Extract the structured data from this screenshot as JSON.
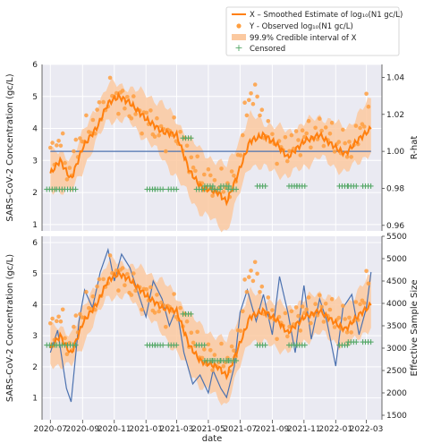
{
  "chart_data": [
    {
      "type": "line",
      "panel": "top",
      "ylabel": "SARS-CoV-2 Concentration (gc/L)",
      "y2label": "R-hat",
      "ylim": [
        0.8,
        6.0
      ],
      "y_ticks": [
        "1",
        "2",
        "3",
        "4",
        "5",
        "6"
      ],
      "y2lim": [
        0.957,
        1.047
      ],
      "y2_ticks": [
        "0.96",
        "0.98",
        "1.00",
        "1.02",
        "1.04"
      ],
      "grid": true,
      "legend": {
        "position": "top-right",
        "entries": [
          "X – Smoothed Estimate of log₁₀(N1 gc/L)",
          "Y - Observed log₁₀(N1 gc/L)",
          "99.9% Credible interval of X",
          "Censored"
        ]
      },
      "series": [
        {
          "name": "X – Smoothed Estimate of log10(N1 gc/L)",
          "color": "#ff7f0e",
          "x": [
            "2020-07-01",
            "2020-07-20",
            "2020-08-10",
            "2020-09-01",
            "2020-10-01",
            "2020-10-20",
            "2020-11-10",
            "2020-12-01",
            "2021-01-01",
            "2021-02-01",
            "2021-03-01",
            "2021-03-25",
            "2021-04-15",
            "2021-05-01",
            "2021-05-20",
            "2021-06-05",
            "2021-06-25",
            "2021-07-20",
            "2021-08-15",
            "2021-09-10",
            "2021-10-01",
            "2021-11-01",
            "2021-12-01",
            "2022-01-01",
            "2022-01-20",
            "2022-02-10",
            "2022-03-10"
          ],
          "values": [
            2.6,
            3.0,
            2.4,
            3.4,
            4.1,
            4.8,
            5.0,
            4.8,
            4.3,
            3.9,
            3.8,
            2.7,
            2.2,
            2.1,
            2.0,
            1.7,
            2.5,
            3.6,
            3.8,
            3.5,
            3.1,
            3.6,
            3.8,
            3.4,
            3.2,
            3.6,
            4.0
          ]
        },
        {
          "name": "Credible interval upper",
          "x": [
            "2020-07-01",
            "2020-08-10",
            "2020-10-20",
            "2020-12-01",
            "2021-02-01",
            "2021-04-15",
            "2021-06-05",
            "2021-07-20",
            "2021-10-01",
            "2021-12-01",
            "2022-01-20",
            "2022-03-10"
          ],
          "values": [
            3.3,
            3.1,
            5.4,
            5.3,
            4.8,
            3.3,
            2.8,
            4.4,
            3.9,
            4.4,
            4.0,
            4.9
          ]
        },
        {
          "name": "Credible interval lower",
          "x": [
            "2020-07-01",
            "2020-08-10",
            "2020-10-20",
            "2020-12-01",
            "2021-02-01",
            "2021-04-15",
            "2021-06-05",
            "2021-07-20",
            "2021-10-01",
            "2021-12-01",
            "2022-01-20",
            "2022-03-10"
          ],
          "values": [
            2.1,
            2.0,
            4.3,
            4.2,
            3.1,
            1.4,
            0.8,
            2.9,
            2.5,
            3.1,
            2.6,
            3.3
          ]
        },
        {
          "name": "R-hat",
          "axis": "right",
          "color": "#4c72b0",
          "x": [
            "2020-07-01",
            "2022-03-10"
          ],
          "values": [
            1.0,
            1.0
          ]
        }
      ],
      "observed_points": {
        "x": [
          "2020-07-05",
          "2020-07-20",
          "2020-08-05",
          "2020-08-25",
          "2020-09-15",
          "2020-10-05",
          "2020-10-25",
          "2020-11-15",
          "2020-12-05",
          "2021-01-10",
          "2021-02-01",
          "2021-03-01",
          "2021-04-10",
          "2021-05-05",
          "2021-05-25",
          "2021-06-20",
          "2021-07-10",
          "2021-07-25",
          "2021-08-20",
          "2021-09-15",
          "2021-10-10",
          "2021-11-05",
          "2021-12-10",
          "2022-01-10",
          "2022-02-05",
          "2022-03-01"
        ],
        "values": [
          3.2,
          3.7,
          2.5,
          3.6,
          4.0,
          4.5,
          5.1,
          4.9,
          4.6,
          4.2,
          3.8,
          3.9,
          2.6,
          2.3,
          2.2,
          2.3,
          4.3,
          5.3,
          3.9,
          3.3,
          3.5,
          3.8,
          3.9,
          3.5,
          3.4,
          4.6
        ]
      },
      "censored_points": {
        "x": [
          "2020-07-01",
          "2020-07-20",
          "2020-08-10",
          "2021-01-10",
          "2021-01-25",
          "2021-02-20",
          "2021-03-20",
          "2021-04-15",
          "2021-05-01",
          "2021-05-15",
          "2021-06-01",
          "2021-06-15",
          "2021-08-10",
          "2021-10-10",
          "2021-10-25",
          "2022-01-15",
          "2022-02-01",
          "2022-03-01"
        ],
        "values": [
          2.1,
          2.1,
          2.1,
          2.1,
          2.1,
          2.1,
          3.7,
          2.1,
          2.2,
          2.1,
          2.2,
          2.1,
          2.2,
          2.2,
          2.2,
          2.2,
          2.2,
          2.2
        ]
      }
    },
    {
      "type": "line",
      "panel": "bottom",
      "xlabel": "date",
      "ylabel": "SARS-CoV-2 Concentration (gc/L)",
      "y2label": "Effective Sample Size",
      "ylim": [
        0.3,
        6.2
      ],
      "y_ticks": [
        "1",
        "2",
        "3",
        "4",
        "5",
        "6"
      ],
      "y2lim": [
        1400,
        5500
      ],
      "y2_ticks": [
        "1500",
        "2000",
        "2500",
        "3000",
        "3500",
        "4000",
        "4500",
        "5000",
        "5500"
      ],
      "categories": [
        "2020-07",
        "2020-09",
        "2020-11",
        "2021-01",
        "2021-03",
        "2021-05",
        "2021-07",
        "2021-09",
        "2021-11",
        "2022-01",
        "2022-03"
      ],
      "grid": true,
      "series": [
        {
          "name": "X – Smoothed Estimate of log10(N1 gc/L)",
          "color": "#ff7f0e",
          "x": [
            "2020-07-01",
            "2020-07-20",
            "2020-08-10",
            "2020-09-01",
            "2020-10-01",
            "2020-10-20",
            "2020-11-10",
            "2020-12-01",
            "2021-01-01",
            "2021-02-01",
            "2021-03-01",
            "2021-03-25",
            "2021-04-15",
            "2021-05-01",
            "2021-05-20",
            "2021-06-05",
            "2021-06-25",
            "2021-07-20",
            "2021-08-15",
            "2021-09-10",
            "2021-10-01",
            "2021-11-01",
            "2021-12-01",
            "2022-01-01",
            "2022-01-20",
            "2022-02-10",
            "2022-03-10"
          ],
          "values": [
            2.6,
            3.0,
            2.4,
            3.4,
            4.1,
            4.8,
            5.0,
            4.8,
            4.3,
            3.9,
            3.8,
            2.7,
            2.2,
            2.1,
            2.0,
            1.7,
            2.5,
            3.6,
            3.8,
            3.5,
            3.1,
            3.6,
            3.8,
            3.4,
            3.2,
            3.6,
            4.0
          ]
        },
        {
          "name": "Credible interval upper",
          "x": [
            "2020-07-01",
            "2020-08-10",
            "2020-10-20",
            "2020-12-01",
            "2021-02-01",
            "2021-04-15",
            "2021-06-05",
            "2021-07-20",
            "2021-10-01",
            "2021-12-01",
            "2022-01-20",
            "2022-03-10"
          ],
          "values": [
            3.3,
            3.1,
            5.4,
            5.3,
            4.8,
            3.3,
            2.8,
            4.4,
            3.9,
            4.4,
            4.0,
            4.9
          ]
        },
        {
          "name": "Credible interval lower",
          "x": [
            "2020-07-01",
            "2020-08-10",
            "2020-10-20",
            "2020-12-01",
            "2021-02-01",
            "2021-04-15",
            "2021-06-05",
            "2021-07-20",
            "2021-10-01",
            "2021-12-01",
            "2022-01-20",
            "2022-03-10"
          ],
          "values": [
            2.1,
            2.0,
            4.3,
            4.2,
            3.1,
            1.4,
            0.8,
            2.9,
            2.5,
            3.1,
            2.6,
            3.3
          ]
        },
        {
          "name": "Effective Sample Size",
          "axis": "right",
          "color": "#4c72b0",
          "x": [
            "2020-07-01",
            "2020-07-15",
            "2020-08-01",
            "2020-08-10",
            "2020-08-25",
            "2020-09-05",
            "2020-09-20",
            "2020-10-05",
            "2020-10-20",
            "2020-11-01",
            "2020-11-15",
            "2020-12-01",
            "2020-12-15",
            "2021-01-01",
            "2021-01-15",
            "2021-02-01",
            "2021-02-15",
            "2021-03-01",
            "2021-03-15",
            "2021-04-01",
            "2021-04-15",
            "2021-05-01",
            "2021-05-10",
            "2021-05-25",
            "2021-06-05",
            "2021-06-20",
            "2021-07-01",
            "2021-07-15",
            "2021-08-01",
            "2021-08-15",
            "2021-09-01",
            "2021-09-15",
            "2021-10-01",
            "2021-10-15",
            "2021-11-01",
            "2021-11-15",
            "2021-12-01",
            "2021-12-15",
            "2022-01-01",
            "2022-01-15",
            "2022-02-01",
            "2022-02-15",
            "2022-03-01",
            "2022-03-10"
          ],
          "values": [
            2900,
            3400,
            2100,
            1800,
            3600,
            4300,
            3900,
            4700,
            5200,
            4500,
            5100,
            4800,
            4300,
            3700,
            4500,
            4100,
            3500,
            3900,
            2900,
            2200,
            2400,
            2000,
            2500,
            2100,
            1900,
            2600,
            3800,
            4300,
            3600,
            4200,
            3300,
            4600,
            3800,
            2900,
            4400,
            3200,
            4100,
            3600,
            2600,
            3900,
            4200,
            3300,
            3900,
            4700
          ]
        }
      ],
      "observed_points": {
        "x": [
          "2020-07-05",
          "2020-07-20",
          "2020-08-05",
          "2020-08-25",
          "2020-09-15",
          "2020-10-05",
          "2020-10-25",
          "2020-11-15",
          "2020-12-05",
          "2021-01-10",
          "2021-02-01",
          "2021-03-01",
          "2021-04-10",
          "2021-05-05",
          "2021-05-25",
          "2021-06-20",
          "2021-07-10",
          "2021-07-25",
          "2021-08-20",
          "2021-09-15",
          "2021-10-10",
          "2021-11-05",
          "2021-12-10",
          "2022-01-10",
          "2022-02-05",
          "2022-03-01"
        ],
        "values": [
          3.2,
          3.7,
          2.5,
          3.6,
          4.0,
          4.5,
          5.1,
          4.9,
          4.6,
          4.2,
          3.8,
          3.9,
          2.6,
          2.3,
          2.2,
          2.3,
          4.3,
          5.3,
          3.9,
          3.3,
          3.5,
          3.8,
          3.9,
          3.5,
          3.4,
          4.6
        ]
      },
      "censored_points": {
        "x": [
          "2020-07-01",
          "2020-07-20",
          "2020-08-10",
          "2021-01-10",
          "2021-01-25",
          "2021-02-20",
          "2021-03-20",
          "2021-04-15",
          "2021-05-01",
          "2021-05-15",
          "2021-06-01",
          "2021-06-15",
          "2021-08-10",
          "2021-10-10",
          "2021-10-25",
          "2022-01-15",
          "2022-02-01",
          "2022-03-01"
        ],
        "values": [
          2.7,
          2.7,
          2.7,
          2.7,
          2.7,
          2.7,
          3.7,
          2.7,
          2.2,
          2.2,
          2.2,
          2.2,
          2.7,
          2.7,
          2.7,
          2.7,
          2.8,
          2.8
        ]
      }
    }
  ]
}
